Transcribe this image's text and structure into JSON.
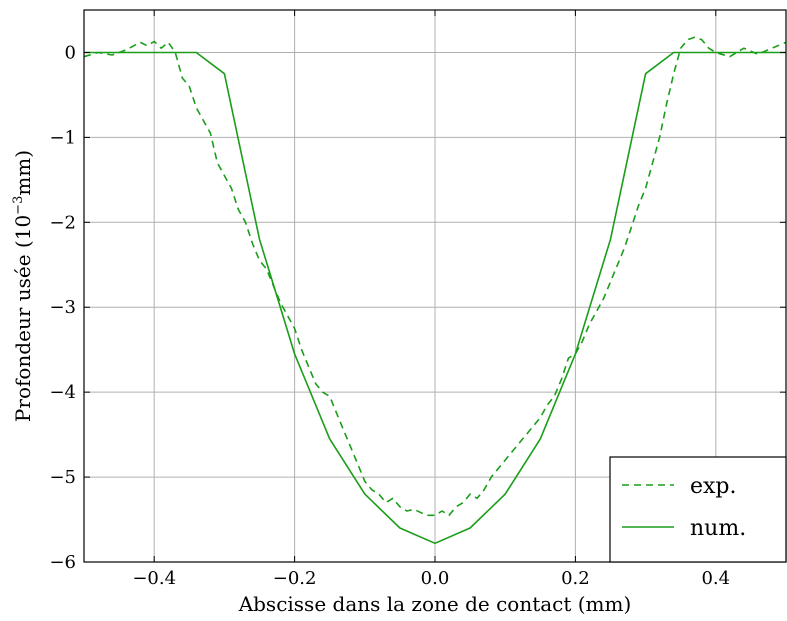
{
  "chart_data": {
    "type": "line",
    "title": "",
    "xlabel": "Abscisse dans la zone de contact (mm)",
    "ylabel_main": "Profondeur usée (10",
    "ylabel_sup": "−3",
    "ylabel_tail": "mm)",
    "xlim": [
      -0.5,
      0.5
    ],
    "ylim": [
      -6,
      0.5
    ],
    "grid": true,
    "legend_position": "bottom-right",
    "x_ticks": [
      {
        "value": -0.4,
        "label": "−0.4"
      },
      {
        "value": -0.2,
        "label": "−0.2"
      },
      {
        "value": 0.0,
        "label": "0.0"
      },
      {
        "value": 0.2,
        "label": "0.2"
      },
      {
        "value": 0.4,
        "label": "0.4"
      }
    ],
    "y_ticks": [
      {
        "value": 0,
        "label": "0"
      },
      {
        "value": -1,
        "label": "−1"
      },
      {
        "value": -2,
        "label": "−2"
      },
      {
        "value": -3,
        "label": "−3"
      },
      {
        "value": -4,
        "label": "−4"
      },
      {
        "value": -5,
        "label": "−5"
      },
      {
        "value": -6,
        "label": "−6"
      }
    ],
    "series": [
      {
        "name": "exp.",
        "style": "dashed",
        "color": "#1a9e1a",
        "x": [
          -0.5,
          -0.48,
          -0.46,
          -0.44,
          -0.42,
          -0.41,
          -0.4,
          -0.39,
          -0.38,
          -0.37,
          -0.36,
          -0.35,
          -0.34,
          -0.33,
          -0.32,
          -0.31,
          -0.3,
          -0.29,
          -0.28,
          -0.27,
          -0.26,
          -0.25,
          -0.24,
          -0.23,
          -0.22,
          -0.21,
          -0.2,
          -0.19,
          -0.18,
          -0.17,
          -0.16,
          -0.15,
          -0.14,
          -0.13,
          -0.12,
          -0.11,
          -0.1,
          -0.09,
          -0.08,
          -0.07,
          -0.06,
          -0.05,
          -0.04,
          -0.03,
          -0.02,
          -0.01,
          0.0,
          0.01,
          0.02,
          0.03,
          0.04,
          0.05,
          0.06,
          0.07,
          0.08,
          0.09,
          0.1,
          0.11,
          0.12,
          0.13,
          0.14,
          0.15,
          0.16,
          0.17,
          0.18,
          0.19,
          0.2,
          0.21,
          0.22,
          0.23,
          0.24,
          0.25,
          0.26,
          0.27,
          0.28,
          0.29,
          0.3,
          0.31,
          0.32,
          0.33,
          0.34,
          0.35,
          0.36,
          0.37,
          0.38,
          0.39,
          0.4,
          0.42,
          0.44,
          0.46,
          0.48,
          0.5
        ],
        "y": [
          -0.05,
          0.0,
          -0.03,
          0.03,
          0.12,
          0.08,
          0.13,
          0.05,
          0.12,
          0.0,
          -0.3,
          -0.4,
          -0.65,
          -0.8,
          -0.95,
          -1.3,
          -1.45,
          -1.6,
          -1.85,
          -2.0,
          -2.25,
          -2.45,
          -2.55,
          -2.75,
          -2.95,
          -3.1,
          -3.25,
          -3.5,
          -3.7,
          -3.9,
          -4.0,
          -4.05,
          -4.25,
          -4.45,
          -4.65,
          -4.85,
          -5.05,
          -5.15,
          -5.2,
          -5.3,
          -5.25,
          -5.35,
          -5.4,
          -5.38,
          -5.42,
          -5.45,
          -5.45,
          -5.4,
          -5.45,
          -5.35,
          -5.3,
          -5.2,
          -5.25,
          -5.15,
          -5.0,
          -4.9,
          -4.8,
          -4.7,
          -4.6,
          -4.5,
          -4.4,
          -4.3,
          -4.15,
          -4.05,
          -3.85,
          -3.6,
          -3.55,
          -3.4,
          -3.2,
          -3.05,
          -2.9,
          -2.7,
          -2.5,
          -2.3,
          -2.05,
          -1.8,
          -1.6,
          -1.3,
          -1.0,
          -0.6,
          -0.25,
          0.05,
          0.15,
          0.18,
          0.15,
          0.05,
          0.0,
          -0.05,
          0.05,
          -0.02,
          0.05,
          0.12
        ]
      },
      {
        "name": "num.",
        "style": "solid",
        "color": "#1a9e1a",
        "x": [
          -0.5,
          -0.34,
          -0.3,
          -0.25,
          -0.2,
          -0.15,
          -0.1,
          -0.05,
          0.0,
          0.05,
          0.1,
          0.15,
          0.2,
          0.25,
          0.3,
          0.34,
          0.5
        ],
        "y": [
          0,
          0,
          -0.25,
          -2.2,
          -3.55,
          -4.55,
          -5.2,
          -5.6,
          -5.78,
          -5.6,
          -5.2,
          -4.55,
          -3.55,
          -2.2,
          -0.25,
          0,
          0
        ]
      }
    ]
  }
}
